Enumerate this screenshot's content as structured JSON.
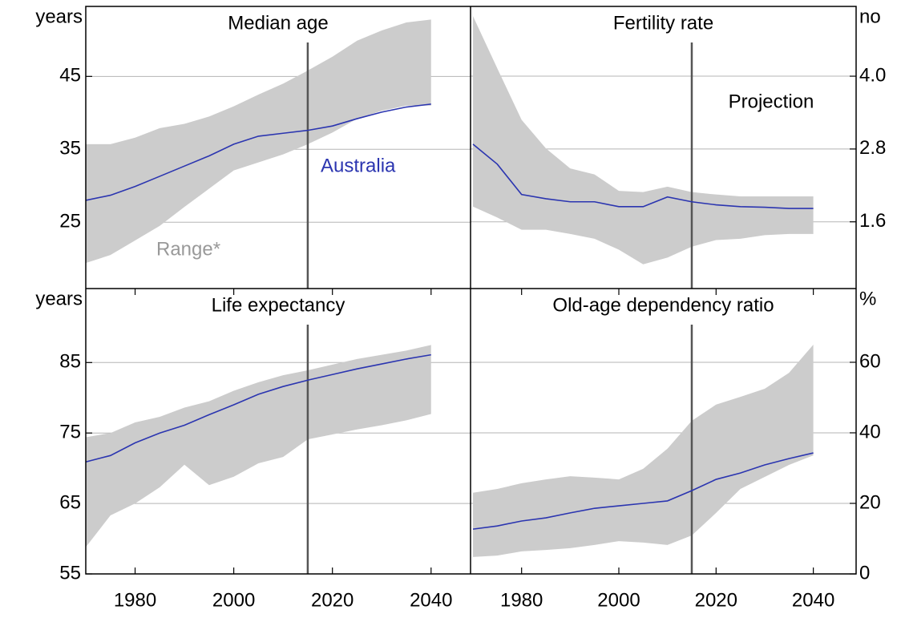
{
  "chart_data": [
    {
      "type": "line",
      "title": "Median age",
      "y_unit": "years",
      "y_side": "left",
      "x": [
        1970,
        1975,
        1980,
        1985,
        1990,
        1995,
        2000,
        2005,
        2010,
        2015,
        2020,
        2025,
        2030,
        2035,
        2040
      ],
      "xlim": [
        1970,
        2048
      ],
      "ylim": [
        15.9,
        54.6
      ],
      "yticks": [
        25,
        35,
        45
      ],
      "grid": true,
      "vline": 2015,
      "series": [
        {
          "name": "Australia",
          "color": "#2b35b0",
          "values": [
            28.0,
            28.7,
            29.9,
            31.3,
            32.7,
            34.1,
            35.7,
            36.8,
            37.2,
            37.6,
            38.2,
            39.2,
            40.1,
            40.8,
            41.2
          ]
        },
        {
          "name": "Range*",
          "color": "#cccccc",
          "low": [
            19.4,
            20.5,
            22.5,
            24.5,
            27.1,
            29.6,
            32.1,
            33.2,
            34.3,
            35.7,
            37.3,
            39.2,
            40.3,
            41.0,
            41.0
          ],
          "high": [
            35.7,
            35.7,
            36.6,
            37.9,
            38.5,
            39.5,
            40.9,
            42.5,
            44.0,
            45.8,
            47.7,
            49.9,
            51.3,
            52.4,
            52.8
          ]
        }
      ]
    },
    {
      "type": "line",
      "title": "Fertility rate",
      "y_unit": "no",
      "y_side": "right",
      "x": [
        1970,
        1975,
        1980,
        1985,
        1990,
        1995,
        2000,
        2005,
        2010,
        2015,
        2020,
        2025,
        2030,
        2035,
        2040
      ],
      "xlim": [
        1969.5,
        2048.8
      ],
      "ylim": [
        0.5,
        5.15
      ],
      "yticks": [
        {
          "value": 1.6,
          "label": "1.6"
        },
        {
          "value": 2.8,
          "label": "2.8"
        },
        {
          "value": 4,
          "label": "4.0"
        }
      ],
      "grid": true,
      "vline": 2015,
      "annotation": "Projection",
      "series": [
        {
          "color": "#2b35b0",
          "values": [
            2.88,
            2.55,
            2.05,
            1.98,
            1.93,
            1.93,
            1.85,
            1.85,
            2.01,
            1.93,
            1.88,
            1.85,
            1.84,
            1.82,
            1.82
          ]
        },
        {
          "color": "#cccccc",
          "low": [
            1.85,
            1.67,
            1.47,
            1.47,
            1.4,
            1.32,
            1.14,
            0.9,
            1.01,
            1.19,
            1.3,
            1.32,
            1.38,
            1.4,
            1.4
          ],
          "high": [
            4.99,
            4.13,
            3.28,
            2.81,
            2.48,
            2.38,
            2.11,
            2.09,
            2.18,
            2.09,
            2.05,
            2.02,
            2.02,
            2.02,
            2.02
          ]
        }
      ]
    },
    {
      "type": "line",
      "title": "Life expectancy",
      "y_unit": "years",
      "y_side": "left",
      "x": [
        1970,
        1975,
        1980,
        1985,
        1990,
        1995,
        2000,
        2005,
        2010,
        2015,
        2020,
        2025,
        2030,
        2035,
        2040
      ],
      "xlim": [
        1970,
        2048
      ],
      "ylim": [
        55,
        95.5
      ],
      "yticks": [
        55,
        65,
        75,
        85
      ],
      "xticks": [
        1980,
        2000,
        2020,
        2040
      ],
      "grid": true,
      "vline": 2015,
      "series": [
        {
          "color": "#2b35b0",
          "values": [
            70.9,
            71.8,
            73.6,
            75.0,
            76.1,
            77.6,
            79.0,
            80.5,
            81.6,
            82.5,
            83.3,
            84.1,
            84.8,
            85.5,
            86.1
          ]
        },
        {
          "color": "#cccccc",
          "low": [
            58.8,
            63.3,
            65.0,
            67.3,
            70.5,
            67.6,
            68.8,
            70.7,
            71.6,
            74.1,
            74.8,
            75.5,
            76.1,
            76.8,
            77.7
          ],
          "high": [
            74.4,
            75.0,
            76.5,
            77.3,
            78.6,
            79.5,
            81.0,
            82.2,
            83.2,
            83.9,
            84.7,
            85.5,
            86.1,
            86.7,
            87.5
          ]
        }
      ]
    },
    {
      "type": "line",
      "title": "Old-age dependency ratio",
      "y_unit": "%",
      "y_side": "right",
      "x": [
        1970,
        1975,
        1980,
        1985,
        1990,
        1995,
        2000,
        2005,
        2010,
        2015,
        2020,
        2025,
        2030,
        2035,
        2040
      ],
      "xlim": [
        1969.5,
        2048.8
      ],
      "ylim": [
        0,
        80.9
      ],
      "yticks": [
        0,
        20,
        40,
        60
      ],
      "xticks": [
        1980,
        2000,
        2020,
        2040
      ],
      "grid": true,
      "vline": 2015,
      "series": [
        {
          "color": "#2b35b0",
          "values": [
            12.7,
            13.6,
            15.0,
            15.9,
            17.3,
            18.6,
            19.3,
            20.0,
            20.7,
            23.6,
            26.8,
            28.6,
            30.9,
            32.7,
            34.3
          ]
        },
        {
          "color": "#cccccc",
          "low": [
            4.8,
            5.2,
            6.4,
            6.8,
            7.3,
            8.2,
            9.3,
            8.9,
            8.2,
            10.9,
            17.3,
            24.1,
            27.5,
            30.9,
            33.6
          ],
          "high": [
            23.0,
            24.1,
            25.7,
            26.8,
            27.7,
            27.3,
            26.8,
            29.8,
            35.5,
            43.4,
            48.0,
            50.2,
            52.5,
            57.0,
            65.0
          ]
        }
      ]
    }
  ]
}
